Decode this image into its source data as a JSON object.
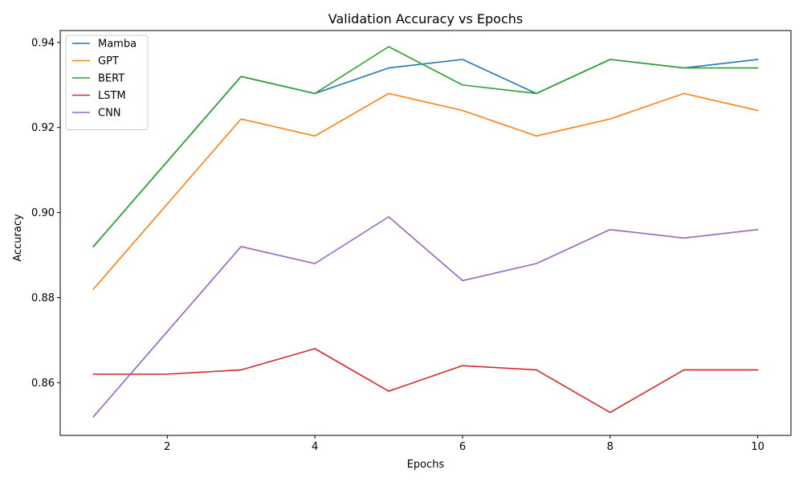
{
  "chart_data": {
    "type": "line",
    "title": "Validation Accuracy vs Epochs",
    "xlabel": "Epochs",
    "ylabel": "Accuracy",
    "x": [
      1,
      2,
      3,
      4,
      5,
      6,
      7,
      8,
      9,
      10
    ],
    "xlim": [
      0.55,
      10.45
    ],
    "ylim": [
      0.8476,
      0.9428
    ],
    "xticks": [
      2,
      4,
      6,
      8,
      10
    ],
    "xtick_labels": [
      "2",
      "4",
      "6",
      "8",
      "10"
    ],
    "yticks": [
      0.86,
      0.88,
      0.9,
      0.92,
      0.94
    ],
    "ytick_labels": [
      "0.86",
      "0.88",
      "0.90",
      "0.92",
      "0.94"
    ],
    "grid": false,
    "legend_position": "top-left",
    "series": [
      {
        "name": "Mamba",
        "color": "#1f77b4",
        "values": [
          0.892,
          0.912,
          0.932,
          0.928,
          0.934,
          0.936,
          0.928,
          0.936,
          0.934,
          0.936
        ]
      },
      {
        "name": "GPT",
        "color": "#ff7f0e",
        "values": [
          0.882,
          0.902,
          0.922,
          0.918,
          0.928,
          0.924,
          0.918,
          0.922,
          0.928,
          0.924
        ]
      },
      {
        "name": "BERT",
        "color": "#2ca02c",
        "values": [
          0.892,
          0.912,
          0.932,
          0.928,
          0.939,
          0.93,
          0.928,
          0.936,
          0.934,
          0.934
        ]
      },
      {
        "name": "LSTM",
        "color": "#d62728",
        "values": [
          0.862,
          0.862,
          0.863,
          0.868,
          0.858,
          0.864,
          0.863,
          0.853,
          0.863,
          0.863
        ]
      },
      {
        "name": "CNN",
        "color": "#9467bd",
        "values": [
          0.852,
          0.872,
          0.892,
          0.888,
          0.899,
          0.884,
          0.888,
          0.896,
          0.894,
          0.896
        ]
      }
    ]
  }
}
